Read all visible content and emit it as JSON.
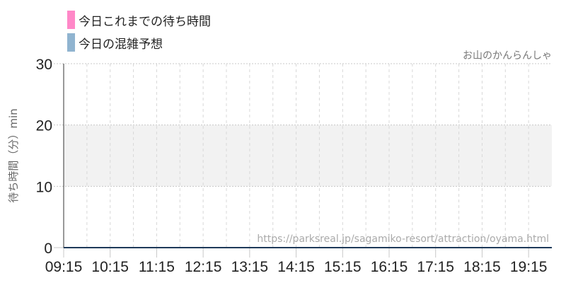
{
  "legend": [
    {
      "label": "今日これまでの待ち時間",
      "color": "#ff88c8"
    },
    {
      "label": "今日の混雑予想",
      "color": "#90b4d0"
    }
  ],
  "attraction": "お山のかんらんしゃ",
  "url": "https://parksreal.jp/sagamiko-resort/attraction/oyama.html",
  "chart_data": {
    "type": "line",
    "ylabel": "待ち時間（分）min",
    "ylim": [
      0,
      30
    ],
    "yticks": [
      "0",
      "10",
      "20",
      "30"
    ],
    "xlim": [
      "09:15",
      "19:45"
    ],
    "xticks": [
      "09:15",
      "10:15",
      "11:15",
      "12:15",
      "13:15",
      "14:15",
      "15:15",
      "16:15",
      "17:15",
      "18:15",
      "19:15"
    ],
    "shaded_band": [
      10,
      20
    ],
    "grid": true,
    "legend_placement": "top-left",
    "series": [
      {
        "name": "今日これまでの待ち時間",
        "values": []
      },
      {
        "name": "今日の混雑予想",
        "values": []
      }
    ]
  }
}
